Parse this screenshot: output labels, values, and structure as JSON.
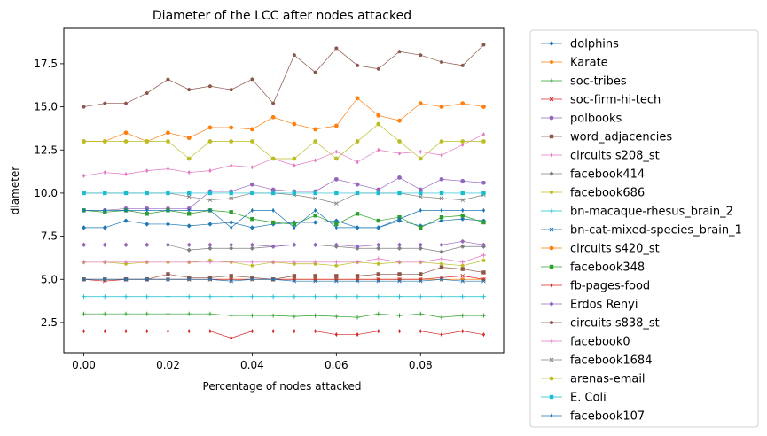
{
  "chart_data": {
    "type": "line",
    "title": "Diameter of the LCC after nodes attacked",
    "xlabel": "Percentage of nodes attacked",
    "ylabel": "diameter",
    "xlim": [
      -0.00475,
      0.09975
    ],
    "ylim": [
      0.75,
      19.55
    ],
    "xticks": [
      0.0,
      0.02,
      0.04,
      0.06,
      0.08
    ],
    "xtick_labels": [
      "0.00",
      "0.02",
      "0.04",
      "0.06",
      "0.08"
    ],
    "yticks": [
      2.5,
      5.0,
      7.5,
      10.0,
      12.5,
      15.0,
      17.5
    ],
    "ytick_labels": [
      "2.5",
      "5.0",
      "7.5",
      "10.0",
      "12.5",
      "15.0",
      "17.5"
    ],
    "grid": false,
    "legend_position": "outside-right",
    "x": [
      0.0,
      0.005,
      0.01,
      0.015,
      0.02,
      0.025,
      0.03,
      0.035,
      0.04,
      0.045,
      0.05,
      0.055,
      0.06,
      0.065,
      0.07,
      0.075,
      0.08,
      0.085,
      0.09,
      0.095
    ],
    "series": [
      {
        "name": "dolphins",
        "color": "#1f77b4",
        "marker": "D",
        "values": [
          8,
          8,
          8.4,
          8.2,
          8.2,
          8.1,
          8.2,
          8.3,
          8,
          8.2,
          8.3,
          8.3,
          8.4,
          8,
          8,
          8.4,
          8.1,
          8.4,
          8.5,
          8.4
        ]
      },
      {
        "name": "Karate",
        "color": "#ff7f0e",
        "marker": "p",
        "values": [
          5,
          5,
          5,
          5,
          5,
          5,
          5,
          5,
          5,
          5,
          5,
          5,
          5,
          5,
          5,
          5,
          5,
          5,
          5,
          5
        ]
      },
      {
        "name": "soc-tribes",
        "color": "#2ca02c",
        "marker": "+",
        "values": [
          3,
          3,
          3,
          3,
          3,
          3,
          3,
          2.9,
          2.9,
          2.9,
          2.85,
          2.9,
          2.85,
          2.8,
          3,
          2.9,
          3,
          2.8,
          2.9,
          2.9
        ]
      },
      {
        "name": "soc-firm-hi-tech",
        "color": "#d62728",
        "marker": "x",
        "values": [
          5,
          4.9,
          5,
          5,
          5,
          5,
          5,
          5,
          5,
          5,
          5,
          5,
          5,
          5,
          5,
          5,
          5,
          5.1,
          5.2,
          5
        ]
      },
      {
        "name": "polbooks",
        "color": "#9467bd",
        "marker": "o",
        "values": [
          9,
          9,
          9.1,
          9.1,
          9.1,
          9.1,
          10.1,
          10.1,
          10.5,
          10.2,
          10.1,
          10.1,
          10.8,
          10.5,
          10.2,
          10.9,
          10.2,
          10.8,
          10.7,
          10.6
        ]
      },
      {
        "name": "word_adjacencies",
        "color": "#8c564b",
        "marker": "s",
        "values": [
          5,
          5,
          5,
          5,
          5.3,
          5.1,
          5.1,
          5.2,
          5.1,
          5,
          5.2,
          5.2,
          5.2,
          5.2,
          5.3,
          5.3,
          5.3,
          5.7,
          5.6,
          5.4
        ]
      },
      {
        "name": "circuits s208_st",
        "color": "#e377c2",
        "marker": "d",
        "values": [
          11,
          11.2,
          11.1,
          11.3,
          11.4,
          11.2,
          11.3,
          11.6,
          11.5,
          12,
          11.6,
          11.9,
          12.4,
          11.8,
          12.5,
          12.3,
          12.4,
          12.2,
          12.8,
          13.4
        ]
      },
      {
        "name": "facebook414",
        "color": "#7f7f7f",
        "marker": "D",
        "values": [
          7,
          7,
          7,
          7,
          7,
          6.7,
          6.8,
          6.8,
          6.8,
          6.9,
          7,
          7,
          6.9,
          6.8,
          6.8,
          6.8,
          6.8,
          6.6,
          6.9,
          6.9
        ]
      },
      {
        "name": "facebook686",
        "color": "#bcbd22",
        "marker": "p",
        "values": [
          6,
          6,
          5.9,
          6,
          6,
          6,
          6.1,
          6,
          5.8,
          6,
          5.9,
          5.9,
          5.8,
          6,
          5.9,
          6,
          6,
          5.9,
          5.8,
          6.1
        ]
      },
      {
        "name": "bn-macaque-rhesus_brain_2",
        "color": "#17becf",
        "marker": "+",
        "values": [
          4,
          4,
          4,
          4,
          4,
          4,
          4,
          4,
          4,
          4,
          4,
          4,
          4,
          4,
          4,
          4,
          4,
          4,
          4,
          4
        ]
      },
      {
        "name": "bn-cat-mixed-species_brain_1",
        "color": "#1f77b4",
        "marker": "x",
        "values": [
          5,
          5,
          5,
          5,
          5,
          5,
          5,
          4.9,
          5,
          5,
          4.9,
          4.9,
          4.9,
          4.9,
          4.9,
          4.9,
          4.9,
          5,
          4.9,
          4.9
        ]
      },
      {
        "name": "circuits s420_st",
        "color": "#ff7f0e",
        "marker": "o",
        "values": [
          13,
          13,
          13.5,
          13,
          13.5,
          13.2,
          13.8,
          13.8,
          13.7,
          14.4,
          14,
          13.7,
          13.9,
          15.5,
          14.5,
          14.2,
          15.2,
          15,
          15.2,
          15
        ]
      },
      {
        "name": "facebook348",
        "color": "#2ca02c",
        "marker": "s",
        "values": [
          9,
          8.9,
          9,
          8.8,
          9,
          8.8,
          9,
          8.9,
          8.5,
          8.3,
          8.2,
          8.7,
          8.2,
          8.8,
          8.4,
          8.6,
          8,
          8.6,
          8.7,
          8.3
        ]
      },
      {
        "name": "fb-pages-food",
        "color": "#d62728",
        "marker": "d",
        "values": [
          2,
          2,
          2,
          2,
          2,
          2,
          2,
          1.6,
          2,
          2,
          2,
          2,
          1.8,
          1.8,
          2,
          2,
          2,
          1.8,
          2,
          1.8
        ]
      },
      {
        "name": "Erdos Renyi",
        "color": "#9467bd",
        "marker": "D",
        "values": [
          7,
          7,
          7,
          7,
          7,
          7,
          7,
          7,
          7,
          6.9,
          7,
          7,
          7,
          6.9,
          7,
          7,
          7,
          7,
          7.2,
          7
        ]
      },
      {
        "name": "circuits s838_st",
        "color": "#8c564b",
        "marker": "p",
        "values": [
          15,
          15.2,
          15.2,
          15.8,
          16.6,
          16,
          16.2,
          16,
          16.6,
          15.2,
          18,
          17,
          18.4,
          17.4,
          17.2,
          18.2,
          18,
          17.6,
          17.4,
          18.6
        ]
      },
      {
        "name": "facebook0",
        "color": "#e377c2",
        "marker": "+",
        "values": [
          6,
          6,
          6,
          6,
          6,
          6,
          6,
          6,
          6,
          6,
          6,
          6,
          6,
          6,
          6.2,
          6,
          6,
          6.2,
          6,
          6.4
        ]
      },
      {
        "name": "facebook1684",
        "color": "#7f7f7f",
        "marker": "x",
        "values": [
          10,
          10,
          10,
          10,
          10,
          9.8,
          9.6,
          9.7,
          10,
          10,
          9.9,
          9.7,
          9.4,
          10,
          10,
          10,
          9.8,
          9.7,
          9.6,
          9.9
        ]
      },
      {
        "name": "arenas-email",
        "color": "#bcbd22",
        "marker": "o",
        "values": [
          13,
          13,
          13,
          13,
          13,
          12,
          13,
          13,
          13,
          12,
          12,
          13,
          12,
          13,
          14,
          13,
          12,
          13,
          13,
          13
        ]
      },
      {
        "name": "E. Coli",
        "color": "#17becf",
        "marker": "s",
        "values": [
          10,
          10,
          10,
          10,
          10,
          10,
          10,
          10,
          10,
          10,
          10,
          10,
          10,
          10,
          10,
          10,
          10,
          10,
          10,
          10
        ]
      },
      {
        "name": "facebook107",
        "color": "#1f77b4",
        "marker": "d",
        "values": [
          9,
          9,
          9,
          9,
          9,
          9,
          9,
          8,
          9,
          9,
          8,
          9,
          8,
          8,
          8,
          8.5,
          9,
          9,
          9,
          9
        ]
      }
    ]
  }
}
